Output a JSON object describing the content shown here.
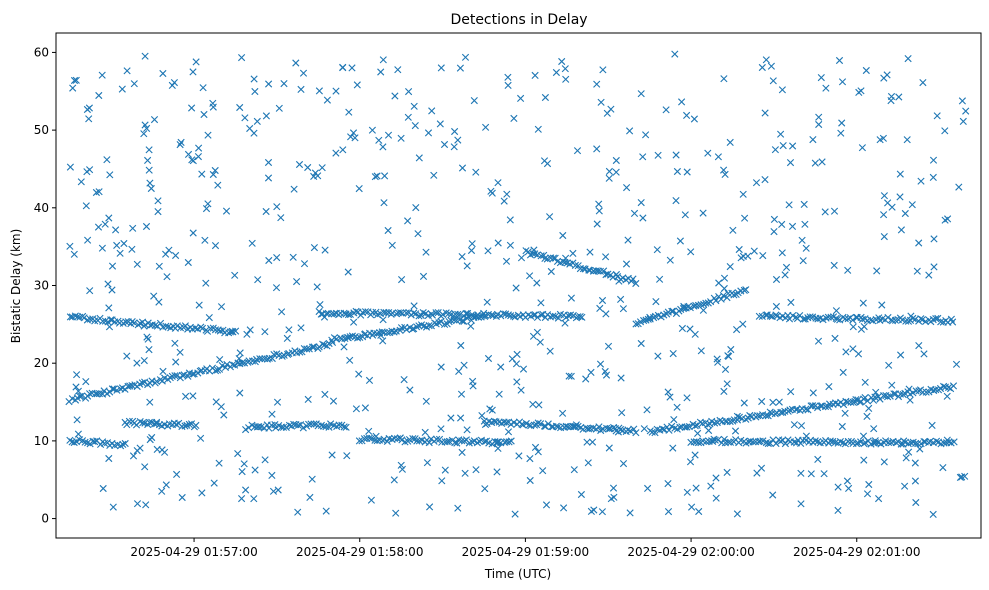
{
  "chart_data": {
    "type": "scatter",
    "title": "Detections in Delay",
    "xlabel": "Time (UTC)",
    "ylabel": "Bistatic Delay (km)",
    "marker": "x",
    "color": "#1f77b4",
    "grid": false,
    "legend": "none",
    "x_start": "2025-04-29 01:56:15",
    "x_end": "2025-04-29 02:01:40",
    "xlim": [
      "2025-04-29 01:56:10",
      "2025-04-29 02:01:45"
    ],
    "ylim": [
      -2.5,
      62.5
    ],
    "x_ticks": [
      {
        "t": "2025-04-29 01:57:00",
        "label": "2025-04-29 01:57:00"
      },
      {
        "t": "2025-04-29 01:58:00",
        "label": "2025-04-29 01:58:00"
      },
      {
        "t": "2025-04-29 01:59:00",
        "label": "2025-04-29 01:59:00"
      },
      {
        "t": "2025-04-29 02:00:00",
        "label": "2025-04-29 02:00:00"
      },
      {
        "t": "2025-04-29 02:01:00",
        "label": "2025-04-29 02:01:00"
      }
    ],
    "y_ticks": [
      0,
      10,
      20,
      30,
      40,
      50,
      60
    ],
    "tracks": [
      {
        "from": [
          "2025-04-29 01:56:15",
          15.3
        ],
        "to": [
          "2025-04-29 01:57:50",
          22.5
        ]
      },
      {
        "from": [
          "2025-04-29 01:57:50",
          23.0
        ],
        "to": [
          "2025-04-29 01:58:45",
          26.0
        ]
      },
      {
        "from": [
          "2025-04-29 01:56:15",
          26.0
        ],
        "to": [
          "2025-04-29 01:57:15",
          24.0
        ]
      },
      {
        "from": [
          "2025-04-29 01:57:45",
          26.5
        ],
        "to": [
          "2025-04-29 01:59:20",
          26.0
        ]
      },
      {
        "from": [
          "2025-04-29 01:59:00",
          34.3
        ],
        "to": [
          "2025-04-29 01:59:40",
          30.5
        ]
      },
      {
        "from": [
          "2025-04-29 01:59:40",
          25.0
        ],
        "to": [
          "2025-04-29 02:00:20",
          29.5
        ]
      },
      {
        "from": [
          "2025-04-29 02:00:25",
          26.0
        ],
        "to": [
          "2025-04-29 02:01:35",
          25.5
        ]
      },
      {
        "from": [
          "2025-04-29 01:59:45",
          11.2
        ],
        "to": [
          "2025-04-29 02:01:35",
          17.0
        ]
      },
      {
        "from": [
          "2025-04-29 01:58:45",
          12.5
        ],
        "to": [
          "2025-04-29 01:59:40",
          11.3
        ]
      },
      {
        "from": [
          "2025-04-29 01:56:35",
          12.3
        ],
        "to": [
          "2025-04-29 01:57:00",
          12.0
        ]
      },
      {
        "from": [
          "2025-04-29 01:57:20",
          11.8
        ],
        "to": [
          "2025-04-29 01:57:55",
          12.0
        ]
      },
      {
        "from": [
          "2025-04-29 01:56:15",
          10.0
        ],
        "to": [
          "2025-04-29 01:56:35",
          9.5
        ]
      },
      {
        "from": [
          "2025-04-29 01:58:00",
          10.2
        ],
        "to": [
          "2025-04-29 01:58:55",
          9.8
        ]
      },
      {
        "from": [
          "2025-04-29 02:00:00",
          10.0
        ],
        "to": [
          "2025-04-29 02:01:35",
          9.7
        ]
      }
    ],
    "clutter_y_range": [
      0.5,
      60
    ],
    "clutter_points": 700
  }
}
